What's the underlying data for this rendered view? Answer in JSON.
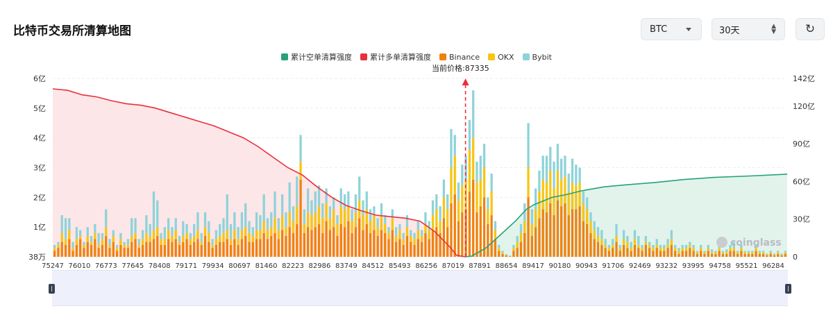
{
  "header": {
    "title": "比特币交易所清算地图",
    "coin_select": "BTC",
    "range_select": "30天",
    "refresh_icon": "refresh-icon"
  },
  "price_marker": {
    "label": "当前价格:87335",
    "value": 87335
  },
  "watermark": "coinglass",
  "colors": {
    "short_cum": "#26a17b",
    "long_cum": "#e8303c",
    "binance": "#f0810e",
    "okx": "#f7c512",
    "bybit": "#8dd3d9",
    "price_line": "#e8303c"
  },
  "chart_data": {
    "type": "bar",
    "x_ticks": [
      "75247",
      "76010",
      "76773",
      "77645",
      "78408",
      "79171",
      "79934",
      "80697",
      "81460",
      "82223",
      "82986",
      "83749",
      "84512",
      "85493",
      "86256",
      "87019",
      "87891",
      "88654",
      "89417",
      "90180",
      "90943",
      "91706",
      "92469",
      "93232",
      "93995",
      "94758",
      "95521",
      "96284"
    ],
    "y_left": {
      "min": 0,
      "max": 6,
      "ticks": [
        "38万",
        "1亿",
        "2亿",
        "3亿",
        "4亿",
        "5亿",
        "6亿"
      ]
    },
    "y_right": {
      "min": 0,
      "max": 142,
      "ticks": [
        "0",
        "30亿",
        "60亿",
        "90亿",
        "120亿",
        "142亿"
      ]
    },
    "legend": [
      {
        "name": "累计空单清算强度",
        "color": "#26a17b"
      },
      {
        "name": "累计多单清算强度",
        "color": "#e8303c"
      },
      {
        "name": "Binance",
        "color": "#f0810e"
      },
      {
        "name": "OKX",
        "color": "#f7c512"
      },
      {
        "name": "Bybit",
        "color": "#8dd3d9"
      }
    ],
    "bar_series_units": "亿",
    "bars": [
      [
        0.2,
        0.1,
        0.1
      ],
      [
        0.3,
        0.1,
        0.1
      ],
      [
        0.5,
        0.3,
        0.6
      ],
      [
        0.4,
        0.2,
        0.7
      ],
      [
        0.6,
        0.3,
        0.4
      ],
      [
        0.2,
        0.1,
        0.2
      ],
      [
        0.4,
        0.2,
        0.4
      ],
      [
        0.6,
        0.1,
        0.2
      ],
      [
        0.3,
        0.1,
        0.1
      ],
      [
        0.5,
        0.2,
        0.3
      ],
      [
        0.4,
        0.1,
        0.2
      ],
      [
        0.6,
        0.2,
        0.3
      ],
      [
        0.3,
        0.1,
        0.4
      ],
      [
        0.4,
        0.2,
        0.2
      ],
      [
        0.7,
        0.3,
        0.6
      ],
      [
        0.3,
        0.1,
        0.2
      ],
      [
        0.5,
        0.2,
        0.2
      ],
      [
        0.2,
        0.1,
        0.1
      ],
      [
        0.4,
        0.2,
        0.2
      ],
      [
        0.3,
        0.1,
        0.1
      ],
      [
        0.3,
        0.1,
        0.2
      ],
      [
        0.5,
        0.2,
        0.6
      ],
      [
        0.6,
        0.2,
        0.5
      ],
      [
        0.3,
        0.1,
        0.2
      ],
      [
        0.4,
        0.2,
        0.3
      ],
      [
        0.5,
        0.3,
        0.6
      ],
      [
        0.5,
        0.2,
        0.4
      ],
      [
        0.6,
        0.3,
        1.3
      ],
      [
        0.7,
        0.3,
        0.9
      ],
      [
        0.4,
        0.2,
        0.2
      ],
      [
        0.4,
        0.2,
        0.4
      ],
      [
        0.6,
        0.3,
        0.4
      ],
      [
        0.5,
        0.2,
        0.3
      ],
      [
        0.6,
        0.3,
        0.4
      ],
      [
        0.4,
        0.1,
        0.2
      ],
      [
        0.5,
        0.2,
        0.5
      ],
      [
        0.6,
        0.2,
        0.3
      ],
      [
        0.4,
        0.2,
        0.2
      ],
      [
        0.5,
        0.2,
        0.4
      ],
      [
        0.6,
        0.3,
        0.6
      ],
      [
        0.4,
        0.1,
        0.3
      ],
      [
        0.7,
        0.3,
        0.5
      ],
      [
        0.5,
        0.3,
        0.4
      ],
      [
        0.3,
        0.1,
        0.2
      ],
      [
        0.4,
        0.2,
        0.3
      ],
      [
        0.5,
        0.2,
        0.4
      ],
      [
        0.5,
        0.3,
        0.5
      ],
      [
        0.6,
        0.3,
        1.2
      ],
      [
        0.4,
        0.2,
        0.5
      ],
      [
        0.6,
        0.3,
        0.6
      ],
      [
        0.4,
        0.2,
        0.4
      ],
      [
        0.6,
        0.3,
        0.6
      ],
      [
        0.7,
        0.3,
        0.8
      ],
      [
        0.5,
        0.3,
        0.4
      ],
      [
        0.5,
        0.2,
        0.3
      ],
      [
        0.6,
        0.3,
        0.6
      ],
      [
        0.6,
        0.3,
        0.5
      ],
      [
        0.8,
        0.4,
        0.9
      ],
      [
        0.6,
        0.3,
        0.4
      ],
      [
        0.7,
        0.3,
        0.5
      ],
      [
        0.8,
        0.5,
        0.9
      ],
      [
        0.6,
        0.3,
        0.4
      ],
      [
        0.9,
        0.5,
        0.7
      ],
      [
        0.7,
        0.3,
        0.5
      ],
      [
        1.0,
        0.5,
        1.0
      ],
      [
        0.8,
        0.4,
        0.5
      ],
      [
        1.1,
        0.6,
        1.0
      ],
      [
        2.6,
        0.6,
        0.9
      ],
      [
        0.8,
        0.3,
        0.5
      ],
      [
        1.0,
        0.5,
        0.8
      ],
      [
        0.9,
        0.5,
        0.5
      ],
      [
        1.0,
        0.5,
        0.7
      ],
      [
        1.1,
        0.6,
        0.7
      ],
      [
        0.8,
        0.5,
        0.5
      ],
      [
        1.2,
        0.6,
        0.5
      ],
      [
        0.9,
        0.4,
        0.4
      ],
      [
        1.0,
        0.6,
        0.4
      ],
      [
        0.7,
        0.4,
        0.3
      ],
      [
        1.1,
        0.6,
        0.6
      ],
      [
        1.0,
        0.6,
        0.5
      ],
      [
        1.2,
        0.5,
        0.5
      ],
      [
        0.8,
        0.4,
        0.4
      ],
      [
        1.0,
        0.5,
        0.6
      ],
      [
        1.3,
        0.6,
        0.8
      ],
      [
        0.9,
        0.5,
        0.5
      ],
      [
        1.1,
        0.5,
        0.6
      ],
      [
        0.8,
        0.4,
        0.4
      ],
      [
        0.9,
        0.5,
        0.3
      ],
      [
        0.7,
        0.3,
        0.3
      ],
      [
        0.9,
        0.5,
        0.4
      ],
      [
        0.8,
        0.3,
        0.3
      ],
      [
        0.6,
        0.2,
        0.2
      ],
      [
        0.9,
        0.4,
        0.3
      ],
      [
        0.5,
        0.2,
        0.3
      ],
      [
        0.6,
        0.3,
        0.2
      ],
      [
        0.4,
        0.2,
        0.2
      ],
      [
        0.7,
        0.3,
        0.4
      ],
      [
        0.5,
        0.2,
        0.2
      ],
      [
        0.4,
        0.2,
        0.2
      ],
      [
        0.6,
        0.3,
        0.3
      ],
      [
        0.5,
        0.2,
        0.2
      ],
      [
        0.8,
        0.3,
        0.4
      ],
      [
        0.6,
        0.3,
        0.3
      ],
      [
        0.9,
        0.5,
        0.5
      ],
      [
        1.0,
        0.6,
        0.5
      ],
      [
        0.8,
        0.4,
        0.5
      ],
      [
        1.3,
        0.7,
        0.6
      ],
      [
        1.0,
        0.6,
        0.5
      ],
      [
        1.8,
        1.2,
        1.3
      ],
      [
        2.1,
        1.3,
        0.7
      ],
      [
        1.2,
        0.7,
        0.6
      ],
      [
        1.5,
        0.9,
        0.7
      ],
      [
        1.6,
        1.0,
        0.8
      ],
      [
        2.2,
        1.4,
        1.0
      ],
      [
        2.6,
        1.4,
        1.6
      ],
      [
        1.5,
        1.0,
        0.7
      ],
      [
        1.7,
        0.9,
        0.8
      ],
      [
        2.0,
        1.0,
        0.8
      ],
      [
        1.1,
        0.5,
        0.4
      ],
      [
        1.4,
        0.8,
        0.6
      ],
      [
        0.6,
        0.3,
        0.3
      ],
      [
        0.2,
        0.1,
        0.1
      ],
      [
        0.1,
        0.05,
        0.05
      ],
      [
        0.05,
        0.02,
        0.02
      ],
      [
        0.02,
        0.01,
        0.01
      ],
      [
        0.2,
        0.1,
        0.1
      ],
      [
        0.3,
        0.2,
        0.2
      ],
      [
        0.5,
        0.3,
        0.3
      ],
      [
        0.8,
        0.4,
        0.6
      ],
      [
        2.0,
        1.0,
        1.5
      ],
      [
        0.7,
        0.4,
        0.5
      ],
      [
        1.0,
        0.6,
        0.7
      ],
      [
        1.3,
        0.9,
        0.7
      ],
      [
        1.6,
        1.0,
        0.8
      ],
      [
        1.5,
        1.0,
        0.9
      ],
      [
        1.8,
        1.1,
        0.8
      ],
      [
        1.4,
        0.9,
        0.9
      ],
      [
        1.9,
        1.0,
        0.9
      ],
      [
        1.7,
        0.9,
        0.7
      ],
      [
        1.8,
        0.9,
        0.7
      ],
      [
        1.4,
        0.8,
        0.6
      ],
      [
        1.6,
        0.9,
        0.8
      ],
      [
        1.6,
        0.8,
        0.7
      ],
      [
        1.7,
        0.8,
        0.5
      ],
      [
        1.2,
        0.6,
        0.4
      ],
      [
        1.1,
        0.5,
        0.4
      ],
      [
        0.8,
        0.4,
        0.3
      ],
      [
        0.6,
        0.3,
        0.3
      ],
      [
        0.5,
        0.2,
        0.3
      ],
      [
        0.4,
        0.2,
        0.3
      ],
      [
        0.3,
        0.1,
        0.2
      ],
      [
        0.2,
        0.1,
        0.1
      ],
      [
        0.3,
        0.1,
        0.2
      ],
      [
        0.5,
        0.2,
        0.4
      ],
      [
        0.2,
        0.1,
        0.1
      ],
      [
        0.4,
        0.2,
        0.3
      ],
      [
        0.3,
        0.2,
        0.2
      ],
      [
        0.2,
        0.1,
        0.2
      ],
      [
        0.4,
        0.2,
        0.3
      ],
      [
        0.3,
        0.1,
        0.3
      ],
      [
        0.2,
        0.1,
        0.1
      ],
      [
        0.4,
        0.1,
        0.2
      ],
      [
        0.3,
        0.1,
        0.1
      ],
      [
        0.2,
        0.1,
        0.1
      ],
      [
        0.3,
        0.1,
        0.2
      ],
      [
        0.2,
        0.1,
        0.1
      ],
      [
        0.2,
        0.1,
        0.1
      ],
      [
        0.3,
        0.1,
        0.2
      ],
      [
        0.4,
        0.2,
        0.3
      ],
      [
        0.2,
        0.1,
        0.1
      ],
      [
        0.1,
        0.1,
        0.1
      ],
      [
        0.2,
        0.1,
        0.1
      ],
      [
        0.2,
        0.1,
        0.1
      ],
      [
        0.3,
        0.1,
        0.1
      ],
      [
        0.2,
        0.1,
        0.1
      ],
      [
        0.1,
        0.05,
        0.05
      ],
      [
        0.2,
        0.1,
        0.1
      ],
      [
        0.1,
        0.05,
        0.05
      ],
      [
        0.2,
        0.1,
        0.1
      ],
      [
        0.1,
        0.05,
        0.1
      ],
      [
        0.1,
        0.05,
        0.05
      ],
      [
        0.2,
        0.1,
        0.1
      ],
      [
        0.1,
        0.05,
        0.05
      ],
      [
        0.1,
        0.05,
        0.1
      ],
      [
        0.2,
        0.1,
        0.1
      ],
      [
        0.2,
        0.1,
        0.2
      ],
      [
        0.1,
        0.05,
        0.05
      ],
      [
        0.2,
        0.1,
        0.1
      ],
      [
        0.1,
        0.05,
        0.05
      ],
      [
        0.1,
        0.05,
        0.05
      ],
      [
        0.1,
        0.05,
        0.05
      ],
      [
        0.2,
        0.1,
        0.1
      ],
      [
        0.1,
        0.05,
        0.05
      ],
      [
        0.1,
        0.05,
        0.05
      ],
      [
        0.05,
        0.03,
        0.03
      ],
      [
        0.1,
        0.05,
        0.05
      ],
      [
        0.05,
        0.03,
        0.03
      ],
      [
        0.1,
        0.05,
        0.05
      ],
      [
        0.05,
        0.03,
        0.03
      ],
      [
        0.1,
        0.05,
        0.05
      ]
    ],
    "long_cumulative": [
      [
        0,
        5.65
      ],
      [
        0.02,
        5.6
      ],
      [
        0.04,
        5.45
      ],
      [
        0.06,
        5.38
      ],
      [
        0.08,
        5.25
      ],
      [
        0.1,
        5.15
      ],
      [
        0.12,
        5.1
      ],
      [
        0.14,
        5.0
      ],
      [
        0.16,
        4.85
      ],
      [
        0.18,
        4.7
      ],
      [
        0.2,
        4.55
      ],
      [
        0.22,
        4.4
      ],
      [
        0.24,
        4.2
      ],
      [
        0.26,
        4.0
      ],
      [
        0.28,
        3.7
      ],
      [
        0.3,
        3.35
      ],
      [
        0.32,
        3.0
      ],
      [
        0.34,
        2.75
      ],
      [
        0.36,
        2.35
      ],
      [
        0.38,
        2.0
      ],
      [
        0.4,
        1.72
      ],
      [
        0.42,
        1.55
      ],
      [
        0.44,
        1.4
      ],
      [
        0.46,
        1.35
      ],
      [
        0.48,
        1.3
      ],
      [
        0.5,
        1.2
      ],
      [
        0.52,
        0.85
      ],
      [
        0.54,
        0.35
      ],
      [
        0.55,
        0.05
      ],
      [
        0.562,
        0
      ]
    ],
    "short_cumulative": [
      [
        0.562,
        0
      ],
      [
        0.57,
        0.02
      ],
      [
        0.59,
        0.3
      ],
      [
        0.61,
        0.75
      ],
      [
        0.63,
        1.2
      ],
      [
        0.645,
        1.6
      ],
      [
        0.655,
        1.75
      ],
      [
        0.68,
        2.0
      ],
      [
        0.7,
        2.1
      ],
      [
        0.72,
        2.22
      ],
      [
        0.75,
        2.35
      ],
      [
        0.78,
        2.42
      ],
      [
        0.82,
        2.5
      ],
      [
        0.86,
        2.6
      ],
      [
        0.9,
        2.67
      ],
      [
        0.95,
        2.72
      ],
      [
        1.0,
        2.78
      ]
    ],
    "current_price_fraction": 0.562
  }
}
